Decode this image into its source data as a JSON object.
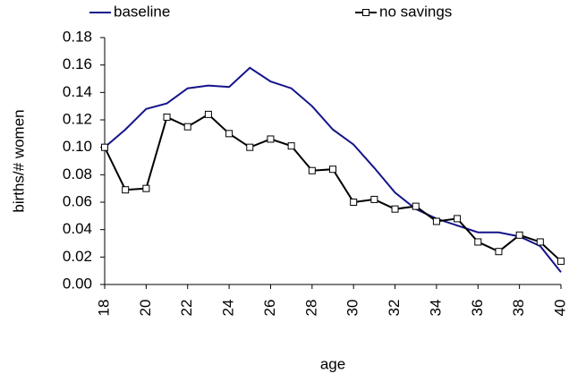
{
  "chart_data": {
    "type": "line",
    "x_label": "age",
    "y_label": "births/# women",
    "x": [
      18,
      19,
      20,
      21,
      22,
      23,
      24,
      25,
      26,
      27,
      28,
      29,
      30,
      31,
      32,
      33,
      34,
      35,
      36,
      37,
      38,
      39,
      40
    ],
    "xlim": [
      18,
      40
    ],
    "xticks": [
      18,
      20,
      22,
      24,
      26,
      28,
      30,
      32,
      34,
      36,
      38,
      40
    ],
    "ylim": [
      0,
      0.18
    ],
    "yticks": [
      {
        "value": 0,
        "label": "0.00"
      },
      {
        "value": 0.02,
        "label": "0.02"
      },
      {
        "value": 0.04,
        "label": "0.04"
      },
      {
        "value": 0.06,
        "label": "0.06"
      },
      {
        "value": 0.08,
        "label": "0.08"
      },
      {
        "value": 0.1,
        "label": "0.10"
      },
      {
        "value": 0.12,
        "label": "0.12"
      },
      {
        "value": 0.14,
        "label": "0.14"
      },
      {
        "value": 0.16,
        "label": "0.16"
      },
      {
        "value": 0.18,
        "label": "0.18"
      }
    ],
    "series": [
      {
        "name": "baseline",
        "color": "#14148a",
        "marker": "none",
        "values": [
          0.1,
          0.113,
          0.128,
          0.132,
          0.143,
          0.145,
          0.144,
          0.158,
          0.148,
          0.143,
          0.13,
          0.113,
          0.102,
          0.085,
          0.067,
          0.055,
          0.048,
          0.043,
          0.038,
          0.038,
          0.035,
          0.028,
          0.009
        ]
      },
      {
        "name": "no savings",
        "color": "#000000",
        "marker": "square",
        "values": [
          0.1,
          0.069,
          0.07,
          0.122,
          0.115,
          0.124,
          0.11,
          0.1,
          0.106,
          0.101,
          0.083,
          0.084,
          0.06,
          0.062,
          0.055,
          0.057,
          0.046,
          0.048,
          0.031,
          0.024,
          0.036,
          0.031,
          0.017
        ]
      }
    ]
  }
}
